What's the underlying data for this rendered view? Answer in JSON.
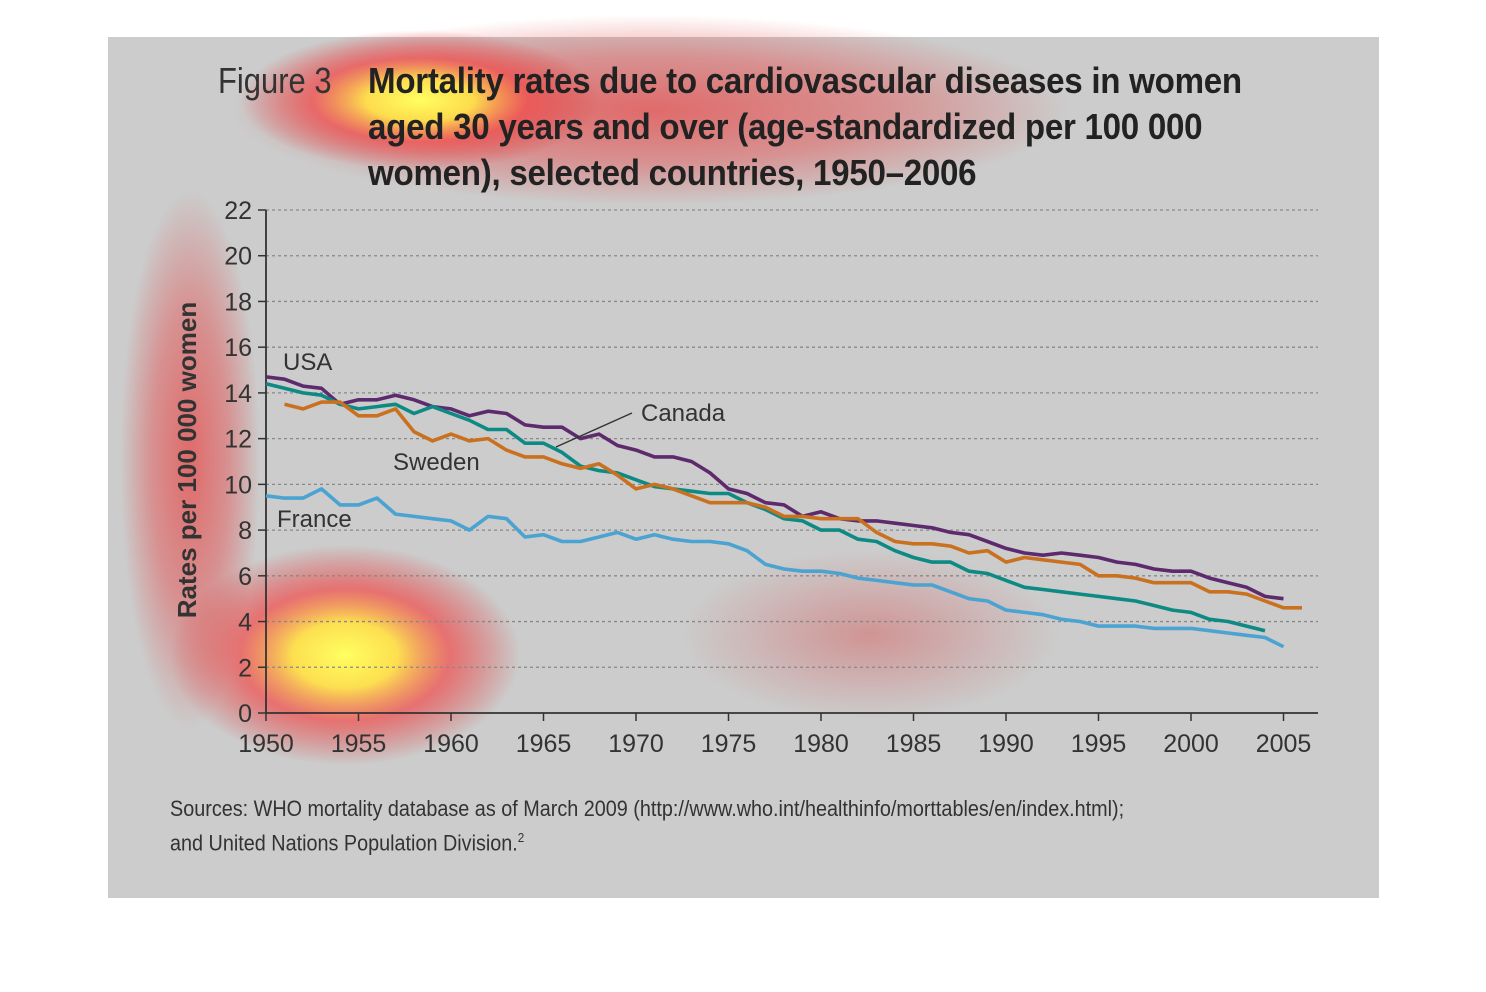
{
  "figure_label": "Figure 3",
  "title_lines": [
    "Mortality rates due to cardiovascular diseases in women",
    "aged 30 years and over (age-standardized per 100 000",
    "women), selected countries, 1950–2006"
  ],
  "source_lines": [
    "Sources: WHO mortality database as of March 2009 (http://www.who.int/healthinfo/morttables/en/index.html);",
    "and United Nations Population Division."
  ],
  "source_footnote": "2",
  "chart_data": {
    "type": "line",
    "title": "Mortality rates due to cardiovascular diseases in women aged 30 years and over (age-standardized per 100 000 women), selected countries, 1950–2006",
    "xlabel": "",
    "ylabel": "Rates per 100 000 women",
    "xlim": [
      1950,
      2007
    ],
    "ylim": [
      0,
      22
    ],
    "x_ticks": [
      1950,
      1955,
      1960,
      1965,
      1970,
      1975,
      1980,
      1985,
      1990,
      1995,
      2000,
      2005
    ],
    "y_ticks": [
      0,
      2,
      4,
      6,
      8,
      10,
      12,
      14,
      16,
      18,
      20,
      22
    ],
    "grid": true,
    "legend": "inline labels",
    "series": [
      {
        "name": "USA",
        "color": "#5e2a6e",
        "x": [
          1950,
          1951,
          1952,
          1953,
          1954,
          1955,
          1956,
          1957,
          1958,
          1959,
          1960,
          1961,
          1962,
          1963,
          1964,
          1965,
          1966,
          1967,
          1968,
          1969,
          1970,
          1971,
          1972,
          1973,
          1974,
          1975,
          1976,
          1977,
          1978,
          1979,
          1980,
          1981,
          1982,
          1983,
          1984,
          1985,
          1986,
          1987,
          1988,
          1989,
          1990,
          1991,
          1992,
          1993,
          1994,
          1995,
          1996,
          1997,
          1998,
          1999,
          2000,
          2001,
          2002,
          2003,
          2004,
          2005
        ],
        "y": [
          14.7,
          14.6,
          14.3,
          14.2,
          13.5,
          13.7,
          13.7,
          13.9,
          13.7,
          13.4,
          13.3,
          13.0,
          13.2,
          13.1,
          12.6,
          12.5,
          12.5,
          12.0,
          12.2,
          11.7,
          11.5,
          11.2,
          11.2,
          11.0,
          10.5,
          9.8,
          9.6,
          9.2,
          9.1,
          8.6,
          8.8,
          8.5,
          8.4,
          8.4,
          8.3,
          8.2,
          8.1,
          7.9,
          7.8,
          7.5,
          7.2,
          7.0,
          6.9,
          7.0,
          6.9,
          6.8,
          6.6,
          6.5,
          6.3,
          6.2,
          6.2,
          5.9,
          5.7,
          5.5,
          5.1,
          5.0
        ]
      },
      {
        "name": "Canada",
        "color": "#0e8a84",
        "x": [
          1950,
          1951,
          1952,
          1953,
          1954,
          1955,
          1956,
          1957,
          1958,
          1959,
          1960,
          1961,
          1962,
          1963,
          1964,
          1965,
          1966,
          1967,
          1968,
          1969,
          1970,
          1971,
          1972,
          1973,
          1974,
          1975,
          1976,
          1977,
          1978,
          1979,
          1980,
          1981,
          1982,
          1983,
          1984,
          1985,
          1986,
          1987,
          1988,
          1989,
          1990,
          1991,
          1992,
          1993,
          1994,
          1995,
          1996,
          1997,
          1998,
          1999,
          2000,
          2001,
          2002,
          2003,
          2004
        ],
        "y": [
          14.4,
          14.2,
          14.0,
          13.9,
          13.5,
          13.3,
          13.4,
          13.5,
          13.1,
          13.4,
          13.1,
          12.8,
          12.4,
          12.4,
          11.8,
          11.8,
          11.4,
          10.8,
          10.6,
          10.5,
          10.2,
          9.9,
          9.8,
          9.7,
          9.6,
          9.6,
          9.2,
          8.9,
          8.5,
          8.4,
          8.0,
          8.0,
          7.6,
          7.5,
          7.1,
          6.8,
          6.6,
          6.6,
          6.2,
          6.1,
          5.8,
          5.5,
          5.4,
          5.3,
          5.2,
          5.1,
          5.0,
          4.9,
          4.7,
          4.5,
          4.4,
          4.1,
          4.0,
          3.8,
          3.6
        ]
      },
      {
        "name": "Sweden",
        "color": "#c9711f",
        "x": [
          1951,
          1952,
          1953,
          1954,
          1955,
          1956,
          1957,
          1958,
          1959,
          1960,
          1961,
          1962,
          1963,
          1964,
          1965,
          1966,
          1967,
          1968,
          1969,
          1970,
          1971,
          1972,
          1973,
          1974,
          1975,
          1976,
          1977,
          1978,
          1979,
          1980,
          1981,
          1982,
          1983,
          1984,
          1985,
          1986,
          1987,
          1988,
          1989,
          1990,
          1991,
          1992,
          1993,
          1994,
          1995,
          1996,
          1997,
          1998,
          1999,
          2000,
          2001,
          2002,
          2003,
          2004,
          2005,
          2006
        ],
        "y": [
          13.5,
          13.3,
          13.6,
          13.6,
          13.0,
          13.0,
          13.3,
          12.3,
          11.9,
          12.2,
          11.9,
          12.0,
          11.5,
          11.2,
          11.2,
          10.9,
          10.7,
          10.9,
          10.4,
          9.8,
          10.0,
          9.8,
          9.5,
          9.2,
          9.2,
          9.2,
          9.0,
          8.6,
          8.6,
          8.5,
          8.5,
          8.5,
          7.9,
          7.5,
          7.4,
          7.4,
          7.3,
          7.0,
          7.1,
          6.6,
          6.8,
          6.7,
          6.6,
          6.5,
          6.0,
          6.0,
          5.9,
          5.7,
          5.7,
          5.7,
          5.3,
          5.3,
          5.2,
          4.9,
          4.6,
          4.6
        ]
      },
      {
        "name": "France",
        "color": "#4aa3d0",
        "x": [
          1950,
          1951,
          1952,
          1953,
          1954,
          1955,
          1956,
          1957,
          1958,
          1959,
          1960,
          1961,
          1962,
          1963,
          1964,
          1965,
          1966,
          1967,
          1968,
          1969,
          1970,
          1971,
          1972,
          1973,
          1974,
          1975,
          1976,
          1977,
          1978,
          1979,
          1980,
          1981,
          1982,
          1983,
          1984,
          1985,
          1986,
          1987,
          1988,
          1989,
          1990,
          1991,
          1992,
          1993,
          1994,
          1995,
          1996,
          1997,
          1998,
          1999,
          2000,
          2001,
          2002,
          2003,
          2004,
          2005
        ],
        "y": [
          9.5,
          9.4,
          9.4,
          9.8,
          9.1,
          9.1,
          9.4,
          8.7,
          8.6,
          8.5,
          8.4,
          8.0,
          8.6,
          8.5,
          7.7,
          7.8,
          7.5,
          7.5,
          7.7,
          7.9,
          7.6,
          7.8,
          7.6,
          7.5,
          7.5,
          7.4,
          7.1,
          6.5,
          6.3,
          6.2,
          6.2,
          6.1,
          5.9,
          5.8,
          5.7,
          5.6,
          5.6,
          5.3,
          5.0,
          4.9,
          4.5,
          4.4,
          4.3,
          4.1,
          4.0,
          3.8,
          3.8,
          3.8,
          3.7,
          3.7,
          3.7,
          3.6,
          3.5,
          3.4,
          3.3,
          2.9
        ]
      }
    ]
  }
}
